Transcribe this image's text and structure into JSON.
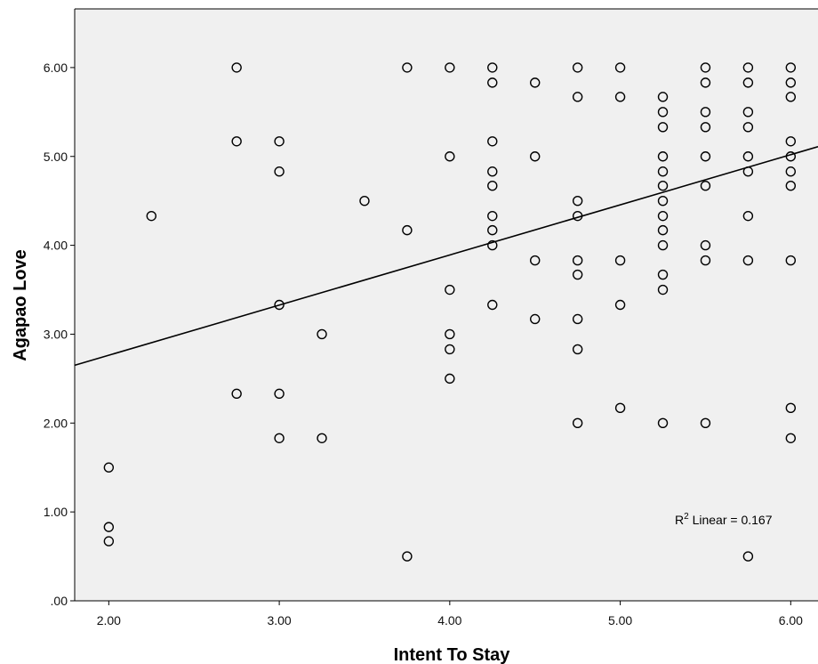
{
  "chart_data": {
    "type": "scatter",
    "xlabel": "Intent To Stay",
    "ylabel": "Agapao Love",
    "xlim": [
      1.8,
      6.16
    ],
    "ylim": [
      0,
      6.66
    ],
    "x_ticks": [
      "2.00",
      "3.00",
      "4.00",
      "5.00",
      "6.00"
    ],
    "y_ticks": [
      ".00",
      "1.00",
      "2.00",
      "3.00",
      "4.00",
      "5.00",
      "6.00"
    ],
    "annotation": {
      "prefix": "R",
      "sup": "2",
      "text": " Linear = 0.167"
    },
    "fit_line": {
      "x": [
        1.8,
        6.16
      ],
      "y": [
        2.65,
        5.11
      ]
    },
    "grid": false,
    "plot_background": "#f0f0f0",
    "marker_color": "#000000",
    "points": [
      [
        2.0,
        1.5
      ],
      [
        2.0,
        0.83
      ],
      [
        2.0,
        0.67
      ],
      [
        2.25,
        4.33
      ],
      [
        2.75,
        6.0
      ],
      [
        2.75,
        5.17
      ],
      [
        2.75,
        2.33
      ],
      [
        3.0,
        5.17
      ],
      [
        3.0,
        4.83
      ],
      [
        3.0,
        3.33
      ],
      [
        3.0,
        2.33
      ],
      [
        3.0,
        1.83
      ],
      [
        3.25,
        3.0
      ],
      [
        3.25,
        1.83
      ],
      [
        3.5,
        4.5
      ],
      [
        3.75,
        6.0
      ],
      [
        3.75,
        4.17
      ],
      [
        3.75,
        0.5
      ],
      [
        4.0,
        6.0
      ],
      [
        4.0,
        5.0
      ],
      [
        4.0,
        3.5
      ],
      [
        4.0,
        3.0
      ],
      [
        4.0,
        2.83
      ],
      [
        4.0,
        2.5
      ],
      [
        4.25,
        6.0
      ],
      [
        4.25,
        5.83
      ],
      [
        4.25,
        5.17
      ],
      [
        4.25,
        4.83
      ],
      [
        4.25,
        4.67
      ],
      [
        4.25,
        4.33
      ],
      [
        4.25,
        4.17
      ],
      [
        4.25,
        4.0
      ],
      [
        4.25,
        3.33
      ],
      [
        4.5,
        5.83
      ],
      [
        4.5,
        5.0
      ],
      [
        4.5,
        3.83
      ],
      [
        4.5,
        3.17
      ],
      [
        4.75,
        6.0
      ],
      [
        4.75,
        5.67
      ],
      [
        4.75,
        4.5
      ],
      [
        4.75,
        4.33
      ],
      [
        4.75,
        3.83
      ],
      [
        4.75,
        3.67
      ],
      [
        4.75,
        3.17
      ],
      [
        4.75,
        2.83
      ],
      [
        4.75,
        2.0
      ],
      [
        5.0,
        6.0
      ],
      [
        5.0,
        5.67
      ],
      [
        5.0,
        3.83
      ],
      [
        5.0,
        3.33
      ],
      [
        5.0,
        2.17
      ],
      [
        5.25,
        5.67
      ],
      [
        5.25,
        5.5
      ],
      [
        5.25,
        5.33
      ],
      [
        5.25,
        5.0
      ],
      [
        5.25,
        4.83
      ],
      [
        5.25,
        4.67
      ],
      [
        5.25,
        4.5
      ],
      [
        5.25,
        4.33
      ],
      [
        5.25,
        4.17
      ],
      [
        5.25,
        4.0
      ],
      [
        5.25,
        3.67
      ],
      [
        5.25,
        3.5
      ],
      [
        5.25,
        2.0
      ],
      [
        5.5,
        6.0
      ],
      [
        5.5,
        5.83
      ],
      [
        5.5,
        5.5
      ],
      [
        5.5,
        5.33
      ],
      [
        5.5,
        5.0
      ],
      [
        5.5,
        4.67
      ],
      [
        5.5,
        4.0
      ],
      [
        5.5,
        3.83
      ],
      [
        5.5,
        2.0
      ],
      [
        5.75,
        6.0
      ],
      [
        5.75,
        5.83
      ],
      [
        5.75,
        5.5
      ],
      [
        5.75,
        5.33
      ],
      [
        5.75,
        5.0
      ],
      [
        5.75,
        4.83
      ],
      [
        5.75,
        4.33
      ],
      [
        5.75,
        3.83
      ],
      [
        5.75,
        0.5
      ],
      [
        6.0,
        6.0
      ],
      [
        6.0,
        5.83
      ],
      [
        6.0,
        5.67
      ],
      [
        6.0,
        5.17
      ],
      [
        6.0,
        5.0
      ],
      [
        6.0,
        4.83
      ],
      [
        6.0,
        4.67
      ],
      [
        6.0,
        3.83
      ],
      [
        6.0,
        2.17
      ],
      [
        6.0,
        1.83
      ]
    ]
  }
}
